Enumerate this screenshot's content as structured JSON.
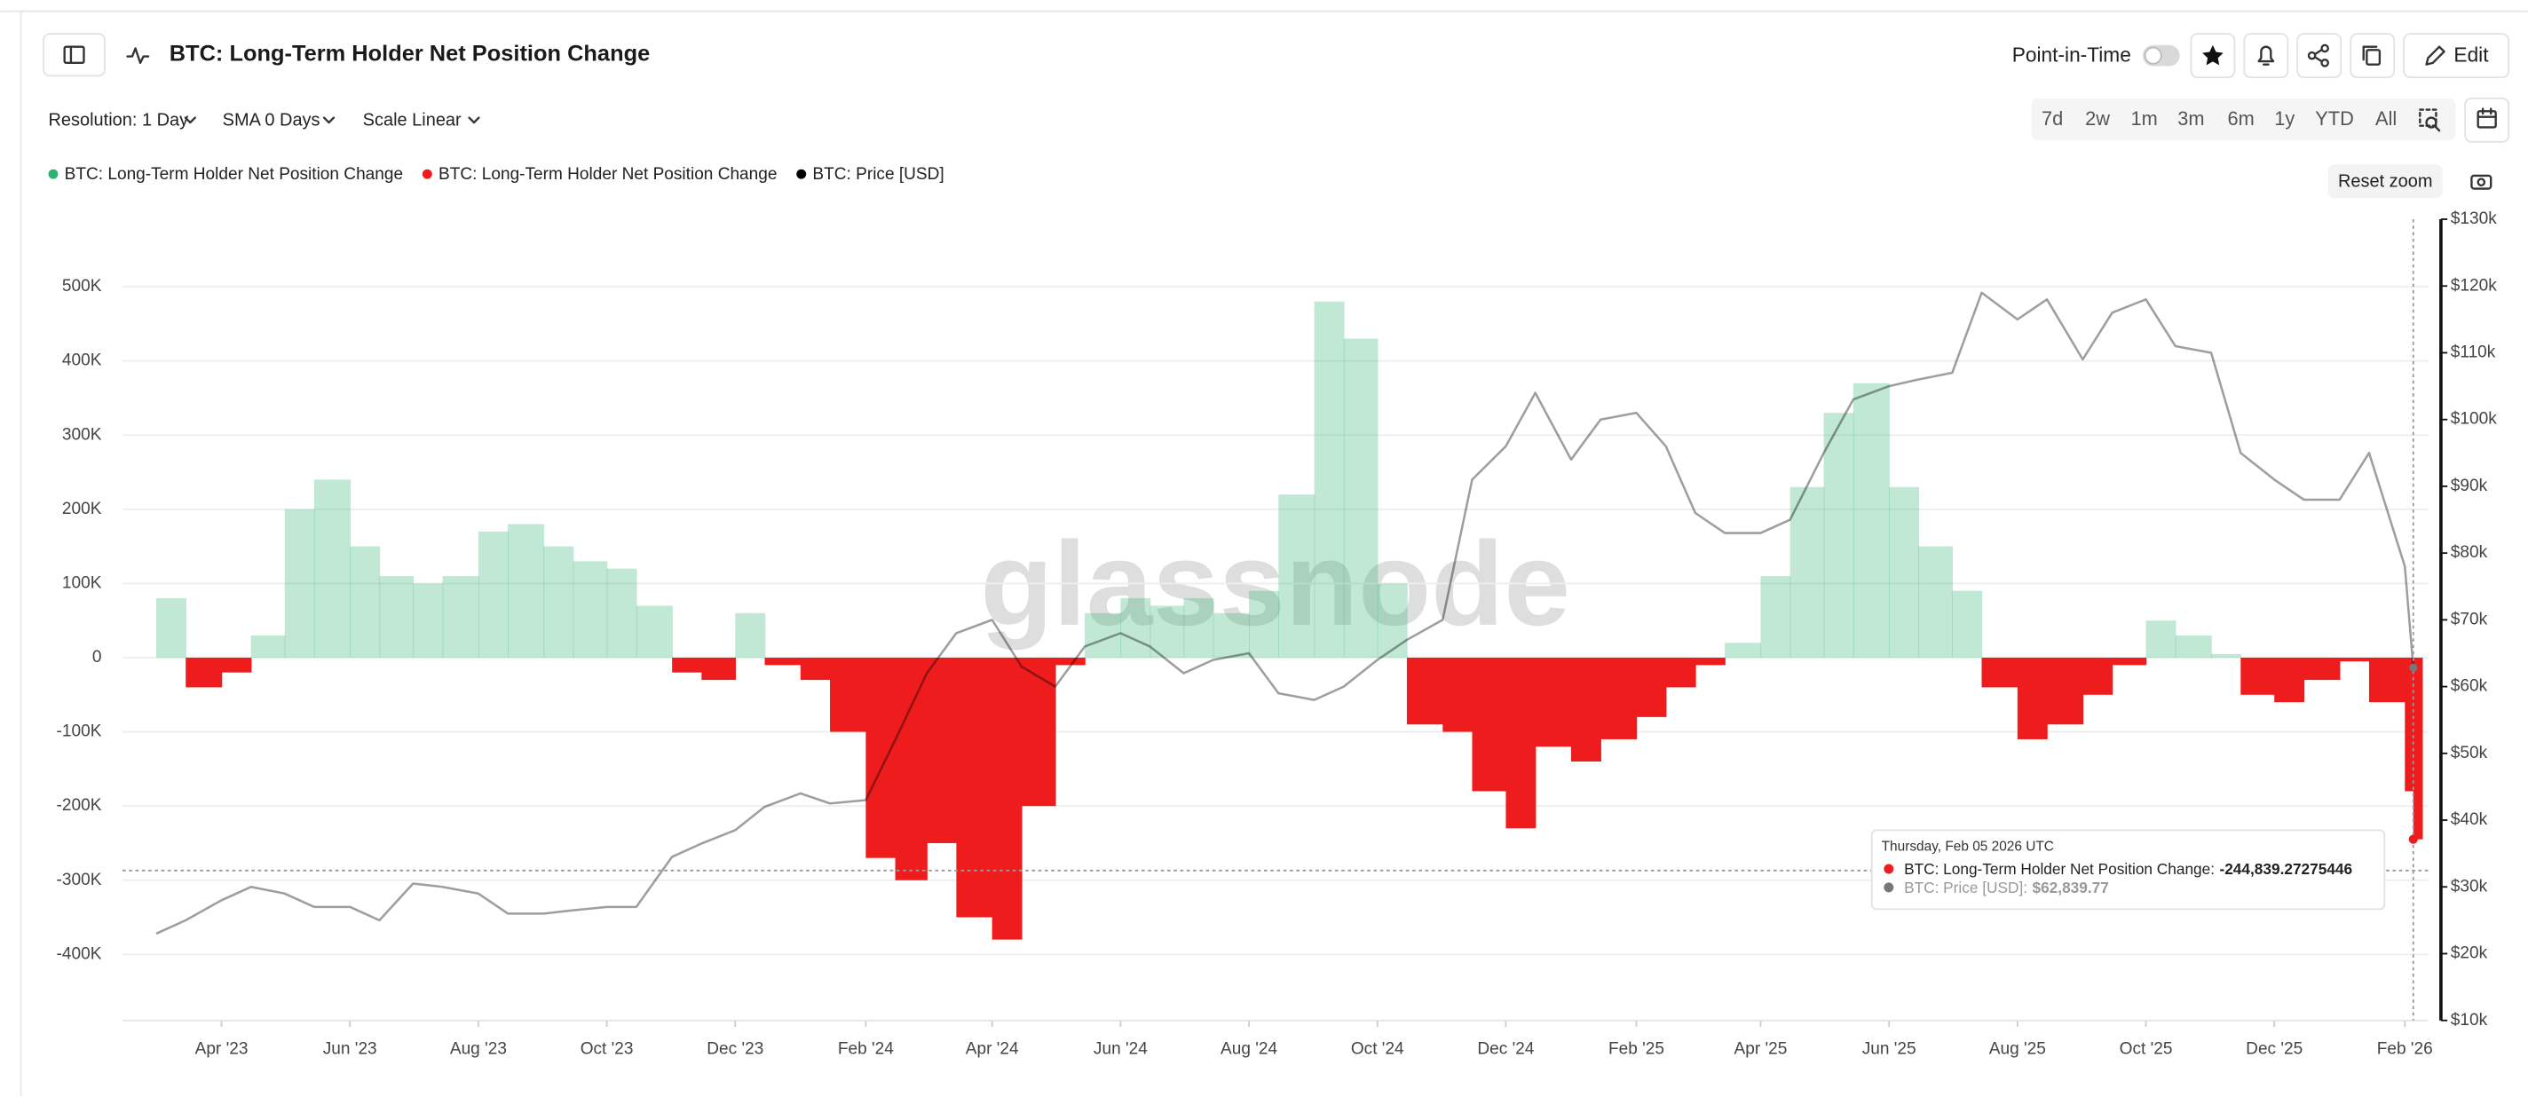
{
  "toolbar": {
    "point_in_time": "Point-in-Time",
    "edit": "Edit",
    "resolution": "Resolution: 1 Day",
    "sma": "SMA 0 Days",
    "scale": "Scale Linear",
    "ranges": [
      "7d",
      "2w",
      "1m",
      "3m",
      "6m",
      "1y",
      "YTD",
      "All"
    ],
    "reset_zoom": "Reset zoom"
  },
  "chart_data": {
    "type": "bar-line",
    "title": "BTC: Long-Term Holder Net Position Change",
    "watermark": "glassnode",
    "x": [
      "2023-03-01",
      "2023-03-15",
      "2023-04-01",
      "2023-04-15",
      "2023-05-01",
      "2023-05-15",
      "2023-06-01",
      "2023-06-15",
      "2023-07-01",
      "2023-07-15",
      "2023-08-01",
      "2023-08-15",
      "2023-09-01",
      "2023-09-15",
      "2023-10-01",
      "2023-10-15",
      "2023-11-01",
      "2023-11-15",
      "2023-12-01",
      "2023-12-15",
      "2024-01-01",
      "2024-01-15",
      "2024-02-01",
      "2024-02-15",
      "2024-03-01",
      "2024-03-15",
      "2024-04-01",
      "2024-04-15",
      "2024-05-01",
      "2024-05-15",
      "2024-06-01",
      "2024-06-15",
      "2024-07-01",
      "2024-07-15",
      "2024-08-01",
      "2024-08-15",
      "2024-09-01",
      "2024-09-15",
      "2024-10-01",
      "2024-10-15",
      "2024-11-01",
      "2024-11-15",
      "2024-12-01",
      "2024-12-15",
      "2025-01-01",
      "2025-01-15",
      "2025-02-01",
      "2025-02-15",
      "2025-03-01",
      "2025-03-15",
      "2025-04-01",
      "2025-04-15",
      "2025-05-01",
      "2025-05-15",
      "2025-06-01",
      "2025-06-15",
      "2025-07-01",
      "2025-07-15",
      "2025-08-01",
      "2025-08-15",
      "2025-09-01",
      "2025-09-15",
      "2025-10-01",
      "2025-10-15",
      "2025-11-01",
      "2025-11-15",
      "2025-12-01",
      "2025-12-15",
      "2026-01-01",
      "2026-01-15",
      "2026-02-01",
      "2026-02-05"
    ],
    "xlim": [
      "2023-02-13",
      "2026-02-12"
    ],
    "xticks": [
      {
        "value": "2023-04-01",
        "label": "Apr '23"
      },
      {
        "value": "2023-06-01",
        "label": "Jun '23"
      },
      {
        "value": "2023-08-01",
        "label": "Aug '23"
      },
      {
        "value": "2023-10-01",
        "label": "Oct '23"
      },
      {
        "value": "2023-12-01",
        "label": "Dec '23"
      },
      {
        "value": "2024-02-01",
        "label": "Feb '24"
      },
      {
        "value": "2024-04-01",
        "label": "Apr '24"
      },
      {
        "value": "2024-06-01",
        "label": "Jun '24"
      },
      {
        "value": "2024-08-01",
        "label": "Aug '24"
      },
      {
        "value": "2024-10-01",
        "label": "Oct '24"
      },
      {
        "value": "2024-12-01",
        "label": "Dec '24"
      },
      {
        "value": "2025-02-01",
        "label": "Feb '25"
      },
      {
        "value": "2025-04-01",
        "label": "Apr '25"
      },
      {
        "value": "2025-06-01",
        "label": "Jun '25"
      },
      {
        "value": "2025-08-01",
        "label": "Aug '25"
      },
      {
        "value": "2025-10-01",
        "label": "Oct '25"
      },
      {
        "value": "2025-12-01",
        "label": "Dec '25"
      },
      {
        "value": "2026-02-01",
        "label": "Feb '26"
      }
    ],
    "ylim": [
      -489000,
      591000
    ],
    "yticks": [
      {
        "value": -400000,
        "label": "-400K"
      },
      {
        "value": -300000,
        "label": "-300K"
      },
      {
        "value": -200000,
        "label": "-200K"
      },
      {
        "value": -100000,
        "label": "-100K"
      },
      0,
      {
        "value": 100000,
        "label": "100K"
      },
      {
        "value": 200000,
        "label": "200K"
      },
      {
        "value": 300000,
        "label": "300K"
      },
      {
        "value": 400000,
        "label": "400K"
      },
      {
        "value": 500000,
        "label": "500K"
      }
    ],
    "y2lim": [
      10000,
      130000
    ],
    "y2ticks": [
      {
        "value": 10000,
        "label": "$10k"
      },
      {
        "value": 20000,
        "label": "$20k"
      },
      {
        "value": 30000,
        "label": "$30k"
      },
      {
        "value": 40000,
        "label": "$40k"
      },
      {
        "value": 50000,
        "label": "$50k"
      },
      {
        "value": 60000,
        "label": "$60k"
      },
      {
        "value": 70000,
        "label": "$70k"
      },
      {
        "value": 80000,
        "label": "$80k"
      },
      {
        "value": 90000,
        "label": "$90k"
      },
      {
        "value": 100000,
        "label": "$100k"
      },
      {
        "value": 110000,
        "label": "$110k"
      },
      {
        "value": 120000,
        "label": "$120k"
      },
      {
        "value": 130000,
        "label": "$130k"
      }
    ],
    "grid": true,
    "series": [
      {
        "name": "BTC: Long-Term Holder Net Position Change",
        "color": "#2db36f",
        "kind": "bar",
        "values": [
          80000,
          null,
          null,
          30000,
          200000,
          240000,
          150000,
          110000,
          100000,
          110000,
          170000,
          180000,
          150000,
          130000,
          120000,
          70000,
          null,
          null,
          60000,
          null,
          null,
          null,
          null,
          null,
          null,
          null,
          null,
          null,
          null,
          60000,
          80000,
          70000,
          80000,
          60000,
          90000,
          220000,
          480000,
          430000,
          100000,
          null,
          null,
          null,
          null,
          null,
          null,
          null,
          null,
          null,
          null,
          20000,
          110000,
          230000,
          330000,
          370000,
          230000,
          150000,
          90000,
          null,
          null,
          null,
          null,
          null,
          50000,
          30000,
          5000,
          null,
          null,
          null,
          null,
          null,
          null,
          null
        ]
      },
      {
        "name": "BTC: Long-Term Holder Net Position Change",
        "color": "#ee1c1c",
        "kind": "bar",
        "values": [
          null,
          -40000,
          -20000,
          null,
          null,
          null,
          null,
          null,
          null,
          null,
          null,
          null,
          null,
          null,
          null,
          null,
          -20000,
          -30000,
          null,
          -10000,
          -30000,
          -100000,
          -270000,
          -300000,
          -250000,
          -350000,
          -380000,
          -200000,
          -10000,
          null,
          null,
          null,
          null,
          null,
          null,
          null,
          null,
          null,
          null,
          -90000,
          -100000,
          -180000,
          -230000,
          -120000,
          -140000,
          -110000,
          -80000,
          -40000,
          -10000,
          null,
          null,
          null,
          null,
          null,
          null,
          null,
          null,
          -40000,
          -110000,
          -90000,
          -50000,
          -10000,
          null,
          null,
          null,
          -50000,
          -60000,
          -30000,
          -5000,
          -60000,
          -180000,
          -244839.27275446
        ]
      },
      {
        "name": "BTC: Price [USD]",
        "color": "#000000",
        "kind": "line",
        "axis": "y2",
        "values": [
          23000,
          25000,
          28000,
          30000,
          29000,
          27000,
          27000,
          25000,
          30500,
          30000,
          29000,
          26000,
          26000,
          26500,
          27000,
          27000,
          34500,
          36500,
          38500,
          42000,
          44000,
          42500,
          43000,
          52000,
          62000,
          68000,
          70000,
          63000,
          60000,
          66000,
          68000,
          66000,
          62000,
          64000,
          65000,
          59000,
          58000,
          60000,
          64000,
          67000,
          70000,
          91000,
          96000,
          104000,
          94000,
          100000,
          101000,
          96000,
          86000,
          83000,
          83000,
          85000,
          95000,
          103000,
          105000,
          106000,
          107000,
          119000,
          115000,
          118000,
          109000,
          116000,
          118000,
          111000,
          110000,
          95000,
          91000,
          88000,
          88000,
          95000,
          78000,
          62839.77
        ]
      }
    ],
    "tooltip": {
      "date": "Thursday, Feb 05 2026 UTC",
      "items": [
        {
          "label": "BTC: Long-Term Holder Net Position Change:",
          "value_label": "-244,839.27275446"
        },
        {
          "label": "BTC: Price [USD]:",
          "value_label": "$62,839.77"
        }
      ]
    }
  }
}
